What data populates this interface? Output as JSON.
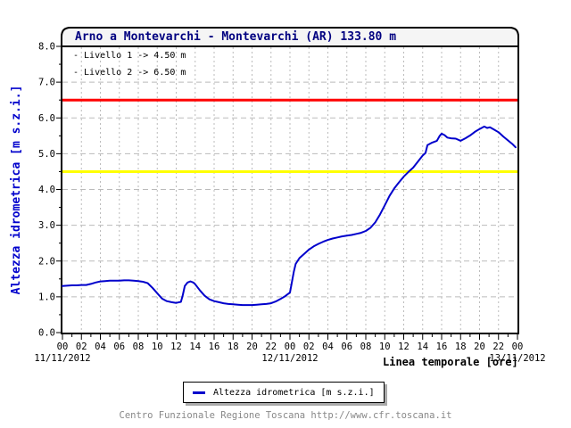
{
  "page": {
    "title": "Arno a Montevarchi - Montevarchi (AR) 133.80 m",
    "footer": "Centro Funzionale Regione Toscana http://www.cfr.toscana.it"
  },
  "annotations": {
    "line1": "- Livello 1 -> 4.50 m",
    "line2": "- Livello 2 -> 6.50 m"
  },
  "axes": {
    "y_title": "Altezza idrometrica [m s.z.i.]",
    "x_title": "Linea temporale [ore]"
  },
  "legend": {
    "series_label": "Altezza idrometrica [m s.z.i.]",
    "marker_color": "#0000CC"
  },
  "colors": {
    "title_text": "#000080",
    "axis_title_blue": "#0000CC",
    "series_line": "#0000CC",
    "threshold_yellow": "#FFFF00",
    "threshold_red": "#FF0000",
    "gridline": "#BBBBBB",
    "axis_black": "#000000",
    "titlebar_bg": "#F5F5F5",
    "footer_text": "#888888"
  },
  "chart_data": {
    "type": "line",
    "title": "Arno a Montevarchi - Montevarchi (AR) 133.80 m",
    "xlabel": "Linea temporale [ore]",
    "ylabel": "Altezza idrometrica [m s.z.i.]",
    "ylim": [
      0.0,
      8.0
    ],
    "x_range_hours": [
      0,
      48
    ],
    "x_tick_step_hours": 2,
    "x_tick_labels": [
      "00",
      "02",
      "04",
      "06",
      "08",
      "10",
      "12",
      "14",
      "16",
      "18",
      "20",
      "22",
      "00",
      "02",
      "04",
      "06",
      "08",
      "10",
      "12",
      "14",
      "16",
      "18",
      "20",
      "22",
      "00"
    ],
    "x_dates": [
      {
        "label": "11/11/2012",
        "hour": 0
      },
      {
        "label": "12/11/2012",
        "hour": 24
      },
      {
        "label": "13/11/2012",
        "hour": 48
      }
    ],
    "y_ticks": [
      0,
      1,
      2,
      3,
      4,
      5,
      6,
      7,
      8
    ],
    "y_tick_labels": [
      "0.0",
      "1.0",
      "2.0",
      "3.0",
      "4.0",
      "5.0",
      "6.0",
      "7.0",
      "8.0"
    ],
    "y_minor_tick_step": 0.5,
    "grid": true,
    "legend_position": "bottom",
    "thresholds": [
      {
        "name": "Livello 1",
        "value": 4.5,
        "color": "#FFFF00"
      },
      {
        "name": "Livello 2",
        "value": 6.5,
        "color": "#FF0000"
      }
    ],
    "series": [
      {
        "name": "Altezza idrometrica [m s.z.i.]",
        "color": "#0000CC",
        "points": [
          [
            0,
            1.3
          ],
          [
            0.5,
            1.31
          ],
          [
            1,
            1.32
          ],
          [
            1.5,
            1.32
          ],
          [
            2,
            1.33
          ],
          [
            2.5,
            1.33
          ],
          [
            3,
            1.36
          ],
          [
            3.5,
            1.4
          ],
          [
            4,
            1.43
          ],
          [
            4.5,
            1.44
          ],
          [
            5,
            1.45
          ],
          [
            5.5,
            1.45
          ],
          [
            6,
            1.45
          ],
          [
            6.5,
            1.46
          ],
          [
            7,
            1.46
          ],
          [
            7.5,
            1.45
          ],
          [
            8,
            1.44
          ],
          [
            8.5,
            1.42
          ],
          [
            9,
            1.38
          ],
          [
            9.5,
            1.25
          ],
          [
            10,
            1.1
          ],
          [
            10.5,
            0.95
          ],
          [
            11,
            0.88
          ],
          [
            11.5,
            0.85
          ],
          [
            12,
            0.83
          ],
          [
            12.5,
            0.86
          ],
          [
            12.7,
            1.05
          ],
          [
            12.9,
            1.3
          ],
          [
            13.2,
            1.4
          ],
          [
            13.5,
            1.43
          ],
          [
            13.8,
            1.4
          ],
          [
            14,
            1.35
          ],
          [
            14.5,
            1.18
          ],
          [
            15,
            1.03
          ],
          [
            15.5,
            0.93
          ],
          [
            16,
            0.88
          ],
          [
            16.5,
            0.85
          ],
          [
            17,
            0.82
          ],
          [
            17.5,
            0.8
          ],
          [
            18,
            0.79
          ],
          [
            18.5,
            0.78
          ],
          [
            19,
            0.77
          ],
          [
            19.5,
            0.77
          ],
          [
            20,
            0.77
          ],
          [
            20.5,
            0.78
          ],
          [
            21,
            0.79
          ],
          [
            21.5,
            0.8
          ],
          [
            22,
            0.82
          ],
          [
            22.5,
            0.87
          ],
          [
            23,
            0.94
          ],
          [
            23.5,
            1.02
          ],
          [
            24,
            1.12
          ],
          [
            24.2,
            1.4
          ],
          [
            24.4,
            1.7
          ],
          [
            24.6,
            1.92
          ],
          [
            25,
            2.08
          ],
          [
            25.5,
            2.2
          ],
          [
            26,
            2.32
          ],
          [
            26.5,
            2.41
          ],
          [
            27,
            2.48
          ],
          [
            27.5,
            2.54
          ],
          [
            28,
            2.59
          ],
          [
            28.5,
            2.63
          ],
          [
            29,
            2.66
          ],
          [
            29.5,
            2.69
          ],
          [
            30,
            2.71
          ],
          [
            30.5,
            2.73
          ],
          [
            31,
            2.76
          ],
          [
            31.5,
            2.79
          ],
          [
            32,
            2.84
          ],
          [
            32.5,
            2.93
          ],
          [
            33,
            3.08
          ],
          [
            33.5,
            3.3
          ],
          [
            34,
            3.56
          ],
          [
            34.5,
            3.82
          ],
          [
            35,
            4.03
          ],
          [
            35.5,
            4.2
          ],
          [
            36,
            4.36
          ],
          [
            36.5,
            4.49
          ],
          [
            37,
            4.61
          ],
          [
            37.5,
            4.78
          ],
          [
            38,
            4.95
          ],
          [
            38.3,
            5.02
          ],
          [
            38.5,
            5.24
          ],
          [
            39,
            5.31
          ],
          [
            39.5,
            5.36
          ],
          [
            39.8,
            5.5
          ],
          [
            40,
            5.56
          ],
          [
            40.3,
            5.52
          ],
          [
            40.6,
            5.45
          ],
          [
            41,
            5.43
          ],
          [
            41.5,
            5.42
          ],
          [
            42,
            5.36
          ],
          [
            42.5,
            5.43
          ],
          [
            43,
            5.51
          ],
          [
            43.5,
            5.61
          ],
          [
            44,
            5.69
          ],
          [
            44.5,
            5.76
          ],
          [
            44.8,
            5.72
          ],
          [
            45.1,
            5.74
          ],
          [
            45.5,
            5.68
          ],
          [
            46,
            5.6
          ],
          [
            46.5,
            5.48
          ],
          [
            47,
            5.37
          ],
          [
            47.5,
            5.26
          ],
          [
            47.8,
            5.18
          ]
        ]
      }
    ]
  }
}
